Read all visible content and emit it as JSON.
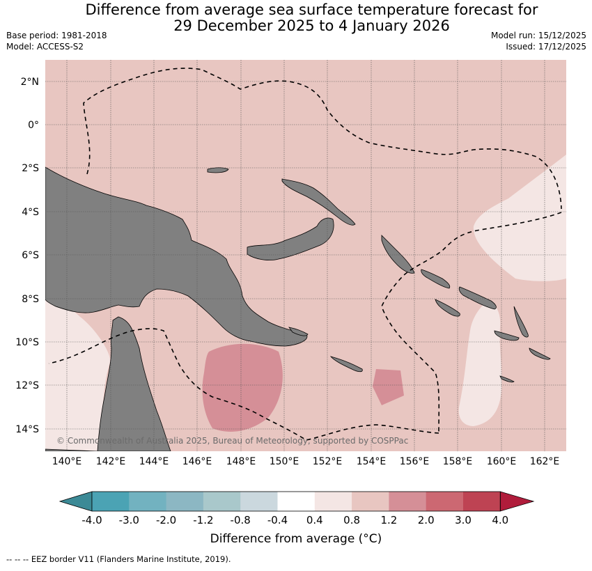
{
  "header": {
    "title_line1": "Difference from average sea surface temperature forecast for",
    "title_line2": "29 December 2025 to 4 January 2026",
    "base_period": "Base period: 1981-2018",
    "model": "Model: ACCESS-S2",
    "model_run": "Model run: 15/12/2025",
    "issued": "Issued: 17/12/2025"
  },
  "map": {
    "lat_labels": [
      "2°N",
      "0°",
      "2°S",
      "4°S",
      "6°S",
      "8°S",
      "10°S",
      "12°S",
      "14°S"
    ],
    "lon_labels": [
      "140°E",
      "142°E",
      "144°E",
      "146°E",
      "148°E",
      "150°E",
      "152°E",
      "154°E",
      "156°E",
      "158°E",
      "160°E",
      "162°E"
    ],
    "copyright": "© Commonwealth of Australia 2025, Bureau of Meteorology, supported by COSPPac",
    "colors": {
      "ocean_0_4_0_8": "#e8c6c1",
      "ocean_0_8_1_2_alt": "#e8c6c1",
      "ocean_warm": "#d58f97",
      "ocean_light": "#f4e6e4",
      "land": "#808080"
    }
  },
  "colorbar": {
    "tick_labels": [
      "-4.0",
      "-3.0",
      "-2.0",
      "-1.2",
      "-0.8",
      "-0.4",
      "0.4",
      "0.8",
      "1.2",
      "2.0",
      "3.0",
      "4.0"
    ],
    "colors": [
      "#3c8a96",
      "#4ba3b4",
      "#72b2c0",
      "#8cb7c3",
      "#a9c8cb",
      "#cbd8de",
      "#ffffff",
      "#f4e6e4",
      "#e8c6c1",
      "#d58f97",
      "#cc6872",
      "#be4353",
      "#b01c3b"
    ],
    "label": "Difference from average (°C)"
  },
  "footer": {
    "legend": "--  --  -- EEZ border V11 (Flanders Marine Institute, 2019)."
  }
}
